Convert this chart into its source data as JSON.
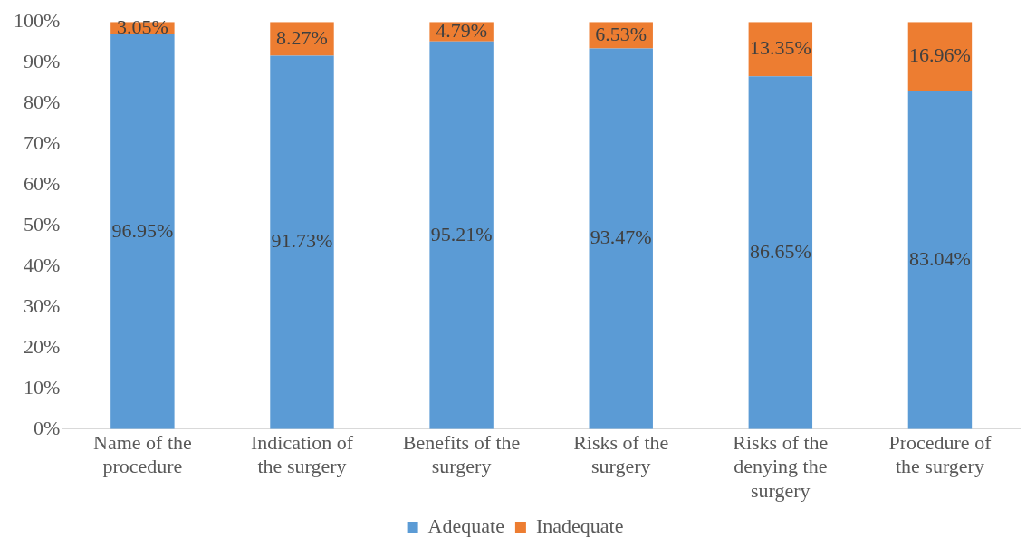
{
  "chart_data": {
    "type": "bar",
    "stacked": true,
    "categories": [
      "Name of the procedure",
      "Indication of the surgery",
      "Benefits of the surgery",
      "Risks of the surgery",
      "Risks of the denying the surgery",
      "Procedure of the surgery"
    ],
    "series": [
      {
        "name": "Adequate",
        "color": "#5b9bd5",
        "values": [
          96.95,
          91.73,
          95.21,
          93.47,
          86.65,
          83.04
        ]
      },
      {
        "name": "Inadequate",
        "color": "#ed7d31",
        "values": [
          3.05,
          8.27,
          4.79,
          6.53,
          13.35,
          16.96
        ]
      }
    ],
    "value_labels": [
      [
        "96.95%",
        "91.73%",
        "95.21%",
        "93.47%",
        "86.65%",
        "83.04%"
      ],
      [
        "3.05%",
        "8.27%",
        "4.79%",
        "6.53%",
        "13.35%",
        "16.96%"
      ]
    ],
    "ylim": [
      0,
      100
    ],
    "yticks": [
      {
        "value": 0,
        "label": "0%"
      },
      {
        "value": 10,
        "label": "10%"
      },
      {
        "value": 20,
        "label": "20%"
      },
      {
        "value": 30,
        "label": "30%"
      },
      {
        "value": 40,
        "label": "40%"
      },
      {
        "value": 50,
        "label": "50%"
      },
      {
        "value": 60,
        "label": "60%"
      },
      {
        "value": 70,
        "label": "70%"
      },
      {
        "value": 80,
        "label": "80%"
      },
      {
        "value": 90,
        "label": "90%"
      },
      {
        "value": 100,
        "label": "100%"
      }
    ],
    "grid": false,
    "legend": "bottom"
  }
}
